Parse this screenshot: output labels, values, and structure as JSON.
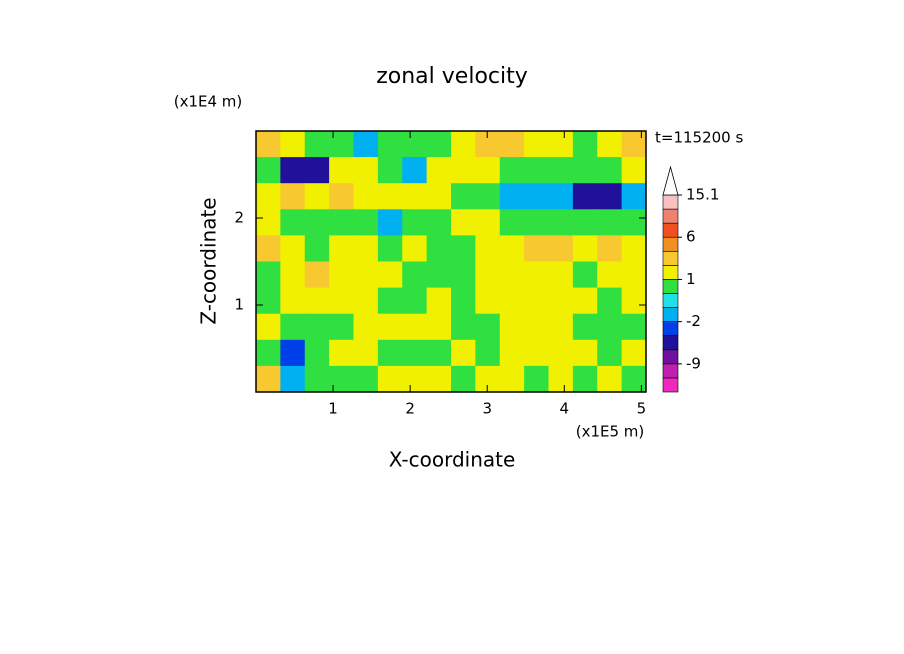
{
  "chart_data": {
    "type": "contour",
    "title": "zonal velocity",
    "x_label": "X-coordinate",
    "y_label": "Z-coordinate",
    "x_unit": "(x1E5 m)",
    "y_unit": "(x1E4 m)",
    "annotation": "t=115200 s",
    "xlim": [
      0,
      5.06
    ],
    "ylim": [
      0,
      3
    ],
    "xticks": [
      1,
      2,
      3,
      4,
      5
    ],
    "yticks": [
      1,
      2
    ],
    "z": [
      [
        2.5,
        1.5,
        0.5,
        0.5,
        -1.5,
        0.5,
        0.5,
        0.5,
        1.5,
        2.5,
        2.5,
        1.5,
        1.5,
        0.5,
        1.5,
        2.5
      ],
      [
        0.5,
        -4,
        -4,
        1.5,
        1.5,
        0.5,
        -1.5,
        1.5,
        1.5,
        1.5,
        0.5,
        0.5,
        0.5,
        0.5,
        0.5,
        1.5
      ],
      [
        1.5,
        2.5,
        1.5,
        2.5,
        1.5,
        1.5,
        1.5,
        1.5,
        0.5,
        0.5,
        -1.5,
        -1.5,
        -1.5,
        -4,
        -5,
        -1.5
      ],
      [
        1.5,
        0.5,
        0.5,
        0.5,
        0.5,
        -1.5,
        0.5,
        0.5,
        1.5,
        1.5,
        0.5,
        0.5,
        0.5,
        0.5,
        0.5,
        0.5
      ],
      [
        2.5,
        1.5,
        0.5,
        1.5,
        1.5,
        0.5,
        1.5,
        0.5,
        0.5,
        1.5,
        1.5,
        2.5,
        2.5,
        1.5,
        2.5,
        1.5
      ],
      [
        0.5,
        1.5,
        2.5,
        1.5,
        1.5,
        1.5,
        0.5,
        0.5,
        0.5,
        1.5,
        1.5,
        1.5,
        1.5,
        0.5,
        1.5,
        1.5
      ],
      [
        0.5,
        1.5,
        1.5,
        1.5,
        1.5,
        0.5,
        0.5,
        1.5,
        0.5,
        1.5,
        1.5,
        1.5,
        1.5,
        1.5,
        0.5,
        1.5
      ],
      [
        1.5,
        0.5,
        0.5,
        0.5,
        1.5,
        1.5,
        1.5,
        1.5,
        0.5,
        0.5,
        1.5,
        1.5,
        1.5,
        0.5,
        0.5,
        0.5
      ],
      [
        0.5,
        -2.5,
        0.5,
        1.5,
        1.5,
        0.5,
        0.5,
        0.5,
        1.5,
        0.5,
        1.5,
        1.5,
        1.5,
        1.5,
        0.5,
        1.5
      ],
      [
        2.5,
        -1.5,
        0.5,
        0.5,
        0.5,
        1.5,
        1.5,
        1.5,
        0.5,
        1.5,
        1.5,
        0.5,
        1.5,
        0.5,
        1.5,
        0.5
      ]
    ],
    "levels": [
      -15,
      -12,
      -9,
      -6,
      -3,
      -2,
      -1,
      0,
      1,
      2,
      3,
      6,
      9,
      12,
      15.1
    ],
    "colors": [
      "#f028c0",
      "#c020b0",
      "#7010a0",
      "#20109a",
      "#0040e8",
      "#00b0f0",
      "#20e0e8",
      "#30e040",
      "#f0f000",
      "#f8c830",
      "#f09020",
      "#f05020",
      "#f08070",
      "#f8c0c0"
    ],
    "over_color": "#ffffff",
    "colorbar_ticks": [
      15.1,
      6,
      1,
      -2,
      -9
    ]
  }
}
